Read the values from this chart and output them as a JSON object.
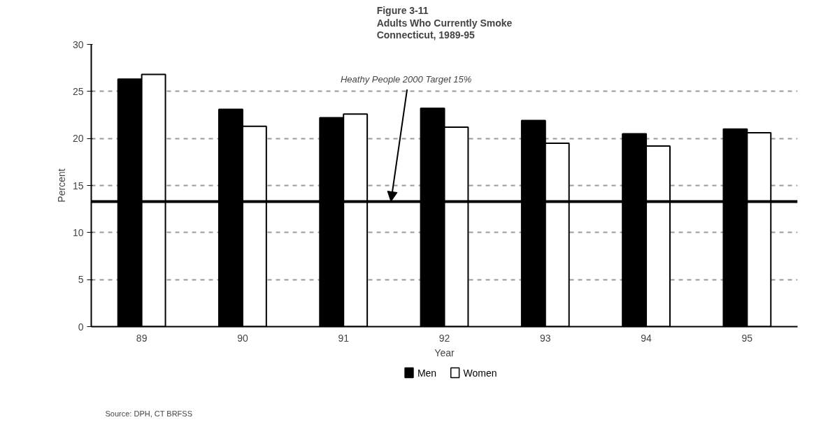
{
  "chart_data": {
    "type": "bar",
    "title": "Figure 3-11\nAdults Who Currently Smoke\nConnecticut, 1989-95",
    "categories": [
      "89",
      "90",
      "91",
      "92",
      "93",
      "94",
      "95"
    ],
    "series": [
      {
        "name": "Men",
        "color": "#000000",
        "values": [
          26.3,
          23.1,
          22.2,
          23.2,
          21.9,
          20.5,
          21.0
        ]
      },
      {
        "name": "Women",
        "color": "#ffffff",
        "values": [
          26.8,
          21.3,
          22.6,
          21.2,
          19.5,
          19.2,
          20.6
        ]
      }
    ],
    "xlabel": "Year",
    "ylabel": "Percent",
    "ylim": [
      0,
      30
    ],
    "yticks": [
      0,
      5,
      10,
      15,
      20,
      25,
      30
    ],
    "grid": "y",
    "legend": "bottom",
    "ref_lines": [
      {
        "axis": "y",
        "value": 13.3,
        "label": "Heathy People 2000 Target 15%",
        "color": "#000000"
      }
    ],
    "annotations": [
      "Source:  DPH, CT BRFSS"
    ]
  }
}
